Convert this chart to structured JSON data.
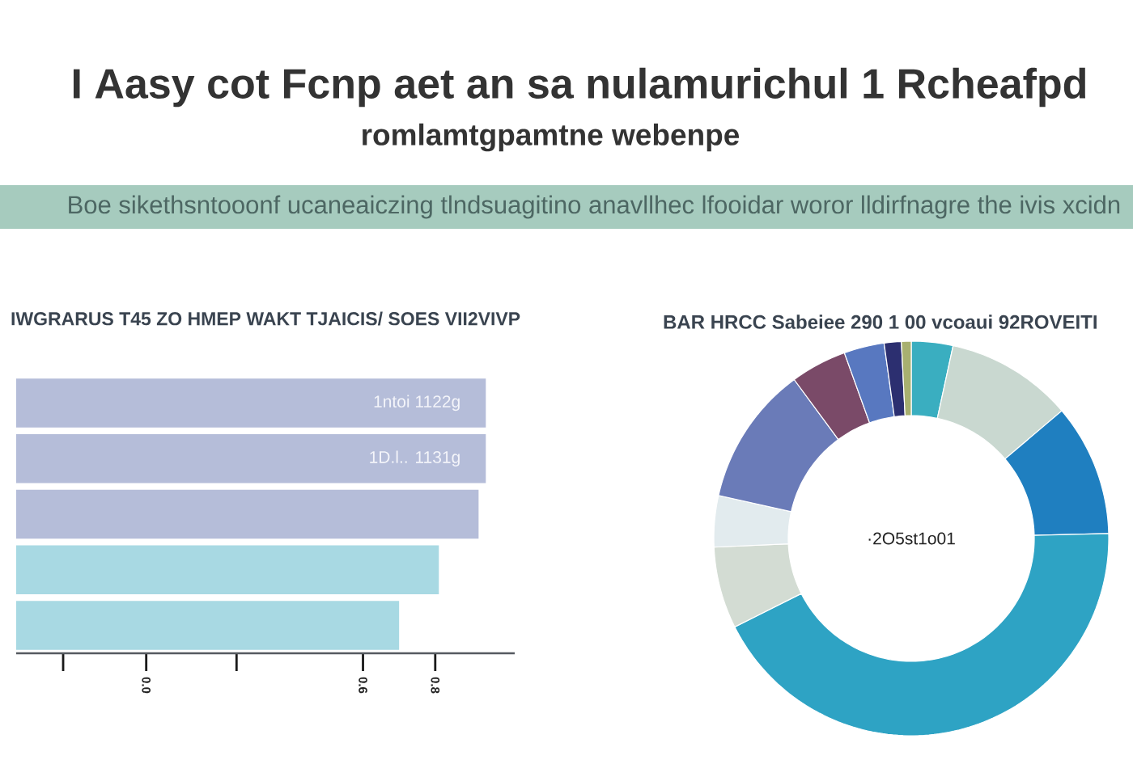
{
  "chart_data": [
    {
      "type": "other",
      "title": "I Aasy cot Fcnp aet an sa nulamurichul 1 Rcheafpd",
      "subtitle": "romlamtgpamtne webenpe",
      "annotations": [
        "Boe sikethsntooonf ucaneaiczing tlndsuagitino anavllhec lfooidar woror lldirfnagre the ivis xcidn"
      ]
    },
    {
      "type": "bar",
      "title": "IWGRARUS T45 ZO HMEP WAKT TJAICIS/ SOES VII2VIVP",
      "orientation": "horizontal",
      "categories": [
        null,
        null,
        null,
        null,
        null
      ],
      "base": [
        -0.36,
        -0.36,
        -0.36,
        -0.36,
        -0.36
      ],
      "values": [
        1.3,
        1.3,
        1.28,
        1.17,
        1.06
      ],
      "colors": [
        "#b5bdd9",
        "#b5bdd9",
        "#b5bdd9",
        "#a8d9e3",
        "#a8d9e3"
      ],
      "value_labels": [
        "1ntoi 1122g",
        "1D.l.. 1131g",
        null,
        null,
        null
      ],
      "xlim": [
        -0.36,
        1.02
      ],
      "xticks": [
        {
          "value": -0.23,
          "label": null
        },
        {
          "value": 0,
          "label": "0.0"
        },
        {
          "value": 0.25,
          "label": null
        },
        {
          "value": 0.6,
          "label": "0.6"
        },
        {
          "value": 0.8,
          "label": "0.8"
        }
      ]
    },
    {
      "type": "donut",
      "title": "BAR HRCC Sabeiee 290 1 00 vcoaui 92ROVEITI",
      "categories": [
        null,
        null,
        null,
        null,
        null,
        null,
        null,
        null,
        null,
        null,
        null
      ],
      "values": [
        3.4,
        10.4,
        10.8,
        43.0,
        6.7,
        4.2,
        11.4,
        4.6,
        3.3,
        1.4,
        0.8
      ],
      "colors": [
        "#3aaec0",
        "#c9d8d0",
        "#1f7fc0",
        "#2ea3c4",
        "#d3dcd3",
        "#e2ebee",
        "#6a7bb8",
        "#7a4a68",
        "#5878c0",
        "#2c2f70",
        "#a8b070"
      ],
      "annotations": [
        "·2O5st1o01"
      ]
    }
  ]
}
